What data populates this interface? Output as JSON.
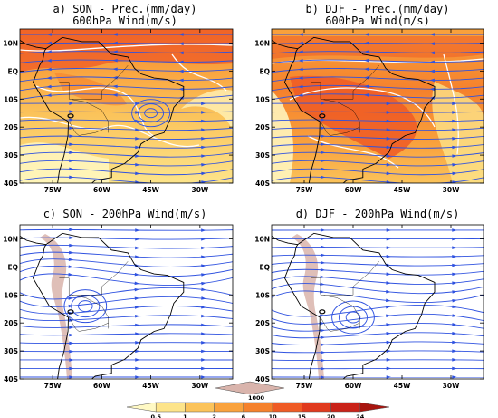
{
  "panels": [
    {
      "id": "a",
      "title_line1": "a) SON - Prec.(mm/day)",
      "title_line2": "600hPa Wind(m/s)",
      "field": "precipitation"
    },
    {
      "id": "b",
      "title_line1": "b) DJF - Prec.(mm/day)",
      "title_line2": "600hPa Wind(m/s)",
      "field": "precipitation"
    },
    {
      "id": "c",
      "title_line1": "c) SON - 200hPa Wind(m/s)",
      "title_line2": "",
      "field": "topography"
    },
    {
      "id": "d",
      "title_line1": "d) DJF - 200hPa Wind(m/s)",
      "title_line2": "",
      "field": "topography"
    }
  ],
  "lon_ticks": [
    "75W",
    "60W",
    "45W",
    "30W"
  ],
  "lat_ticks": [
    "10N",
    "EQ",
    "10S",
    "20S",
    "30S",
    "40S"
  ],
  "precip_colorbar": {
    "labels": [
      "0.5",
      "1",
      "2",
      "6",
      "10",
      "15",
      "20",
      "24"
    ],
    "colors": [
      "#fff9c4",
      "#fde48a",
      "#fbc35a",
      "#f9a23d",
      "#f5812c",
      "#ef5b25",
      "#e03a1e",
      "#c92218",
      "#a8150f"
    ]
  },
  "topo_colorbar": {
    "label": "1000",
    "color": "#d9b4ac"
  },
  "colors": {
    "streamline": "#2f52e0",
    "contour": "#ffffff",
    "coast": "#000000"
  }
}
